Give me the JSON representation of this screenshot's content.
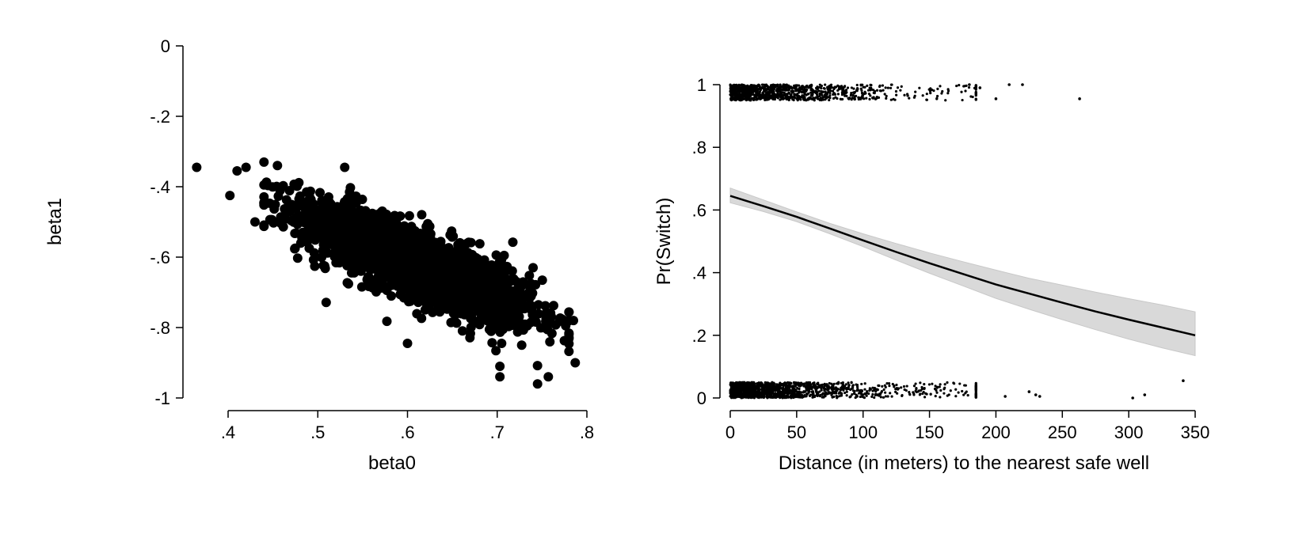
{
  "chart_data": [
    {
      "type": "scatter",
      "xlabel": "beta0",
      "ylabel": "beta1",
      "xlim": [
        0.4,
        0.8
      ],
      "ylim": [
        -1,
        0
      ],
      "x_ticks": [
        ".4",
        ".5",
        ".6",
        ".7",
        ".8"
      ],
      "y_ticks": [
        "0",
        "-.2",
        "-.4",
        "-.6",
        "-.8",
        "-1"
      ],
      "marker_color": "#000000",
      "grid": false,
      "points": {
        "count": 2000,
        "description_note": "dense cloud of posterior draws, negatively correlated",
        "center": [
          0.61,
          -0.62
        ],
        "sd": [
          0.065,
          0.085
        ],
        "correlation": -0.8,
        "extremes": [
          [
            0.365,
            -0.345
          ],
          [
            0.402,
            -0.425
          ],
          [
            0.41,
            -0.355
          ],
          [
            0.42,
            -0.345
          ],
          [
            0.43,
            -0.5
          ],
          [
            0.455,
            -0.34
          ],
          [
            0.53,
            -0.345
          ],
          [
            0.6,
            -0.845
          ],
          [
            0.703,
            -0.91
          ],
          [
            0.703,
            -0.94
          ],
          [
            0.745,
            -0.96
          ],
          [
            0.757,
            -0.94
          ],
          [
            0.775,
            -0.78
          ],
          [
            0.787,
            -0.9
          ],
          [
            0.785,
            -0.78
          ],
          [
            0.74,
            -0.63
          ]
        ]
      }
    },
    {
      "type": "line",
      "xlabel": "Distance (in meters) to the nearest safe well",
      "ylabel": "Pr(Switch)",
      "xlim": [
        0,
        350
      ],
      "ylim": [
        0,
        1
      ],
      "x_ticks": [
        "0",
        "50",
        "100",
        "150",
        "200",
        "250",
        "300",
        "350"
      ],
      "y_ticks": [
        "0",
        ".2",
        ".4",
        ".6",
        ".8",
        "1"
      ],
      "grid": false,
      "line_color": "#000000",
      "band_color": "#d9d9d9",
      "series": [
        {
          "type": "line",
          "x": [
            0,
            25,
            50,
            75,
            100,
            125,
            150,
            175,
            200,
            225,
            250,
            275,
            300,
            325,
            350
          ],
          "y": [
            0.645,
            0.612,
            0.578,
            0.541,
            0.503,
            0.466,
            0.43,
            0.396,
            0.362,
            0.333,
            0.304,
            0.276,
            0.25,
            0.225,
            0.2
          ]
        },
        {
          "type": "confidence-band",
          "x": [
            0,
            25,
            50,
            75,
            100,
            125,
            150,
            175,
            200,
            225,
            250,
            275,
            300,
            325,
            350
          ],
          "lower": [
            0.623,
            0.595,
            0.563,
            0.524,
            0.483,
            0.44,
            0.398,
            0.358,
            0.318,
            0.283,
            0.25,
            0.218,
            0.188,
            0.16,
            0.135
          ],
          "upper": [
            0.67,
            0.632,
            0.594,
            0.557,
            0.524,
            0.493,
            0.463,
            0.435,
            0.408,
            0.382,
            0.36,
            0.338,
            0.317,
            0.297,
            0.275
          ]
        },
        {
          "type": "rug-jitter",
          "top_row_y_range": [
            0.95,
            1.0
          ],
          "bottom_row_y_range": [
            0.0,
            0.05
          ],
          "top_row_x_extent": [
            0,
            270
          ],
          "bottom_row_x_extent": [
            0,
            345
          ],
          "outliers_top": [
            [
              180,
              1.0
            ],
            [
              188,
              0.99
            ],
            [
              200,
              0.955
            ],
            [
              210,
              1.0
            ],
            [
              220,
              1.0
            ],
            [
              263,
              0.955
            ]
          ],
          "outliers_bottom": [
            [
              207,
              0.005
            ],
            [
              225,
              0.02
            ],
            [
              230,
              0.01
            ],
            [
              233,
              0.005
            ],
            [
              303,
              0.0
            ],
            [
              312,
              0.01
            ],
            [
              341,
              0.055
            ]
          ]
        }
      ]
    }
  ]
}
